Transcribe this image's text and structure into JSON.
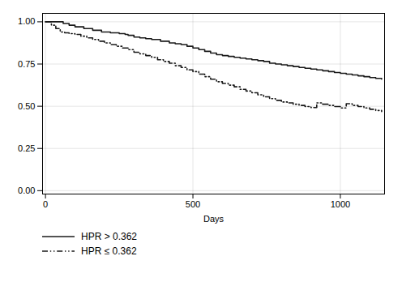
{
  "chart_data": {
    "type": "step",
    "xlabel": "Days",
    "xlim": [
      -10,
      1150
    ],
    "ylim": [
      -0.02,
      1.05
    ],
    "xticks": [
      0,
      500,
      1000
    ],
    "yticks": [
      {
        "value": 0.0,
        "label": "0.00"
      },
      {
        "value": 0.25,
        "label": "0.25"
      },
      {
        "value": 0.5,
        "label": "0.50"
      },
      {
        "value": 0.75,
        "label": "0.75"
      },
      {
        "value": 1.0,
        "label": "1.00"
      }
    ],
    "grid": true,
    "legend": "bottom",
    "series": [
      {
        "name": "HPR > 0.362",
        "color": "#1a1a1a",
        "line_style": "solid",
        "x": [
          0,
          40,
          60,
          80,
          100,
          130,
          160,
          190,
          220,
          250,
          270,
          280,
          300,
          320,
          340,
          360,
          390,
          420,
          440,
          460,
          480,
          500,
          520,
          540,
          560,
          580,
          600,
          620,
          640,
          660,
          680,
          700,
          720,
          740,
          760,
          780,
          800,
          820,
          840,
          860,
          880,
          900,
          920,
          940,
          960,
          980,
          1000,
          1020,
          1040,
          1060,
          1080,
          1100,
          1120,
          1140
        ],
        "values": [
          1.0,
          1.0,
          0.99,
          0.98,
          0.97,
          0.96,
          0.95,
          0.94,
          0.935,
          0.93,
          0.925,
          0.92,
          0.91,
          0.905,
          0.9,
          0.895,
          0.885,
          0.875,
          0.87,
          0.865,
          0.855,
          0.845,
          0.835,
          0.825,
          0.815,
          0.805,
          0.8,
          0.795,
          0.79,
          0.785,
          0.78,
          0.775,
          0.77,
          0.765,
          0.755,
          0.75,
          0.745,
          0.74,
          0.735,
          0.73,
          0.725,
          0.72,
          0.715,
          0.71,
          0.705,
          0.7,
          0.695,
          0.69,
          0.685,
          0.68,
          0.675,
          0.67,
          0.665,
          0.66
        ]
      },
      {
        "name": "HPR ≤ 0.362",
        "color": "#1a1a1a",
        "line_style": "dashdotdot",
        "x": [
          0,
          20,
          35,
          50,
          65,
          80,
          100,
          120,
          140,
          160,
          180,
          200,
          220,
          240,
          260,
          280,
          300,
          320,
          340,
          360,
          380,
          400,
          420,
          440,
          460,
          480,
          500,
          520,
          540,
          560,
          580,
          600,
          620,
          640,
          660,
          680,
          700,
          720,
          740,
          760,
          780,
          800,
          820,
          840,
          860,
          880,
          900,
          920,
          940,
          960,
          980,
          1000,
          1020,
          1040,
          1060,
          1080,
          1100,
          1120,
          1140
        ],
        "values": [
          1.0,
          0.98,
          0.96,
          0.94,
          0.935,
          0.93,
          0.925,
          0.915,
          0.905,
          0.895,
          0.885,
          0.875,
          0.865,
          0.855,
          0.845,
          0.835,
          0.82,
          0.81,
          0.8,
          0.79,
          0.775,
          0.765,
          0.755,
          0.74,
          0.73,
          0.715,
          0.705,
          0.69,
          0.675,
          0.66,
          0.645,
          0.635,
          0.625,
          0.615,
          0.6,
          0.59,
          0.58,
          0.568,
          0.556,
          0.545,
          0.535,
          0.525,
          0.52,
          0.512,
          0.505,
          0.498,
          0.492,
          0.52,
          0.512,
          0.505,
          0.498,
          0.49,
          0.515,
          0.505,
          0.498,
          0.49,
          0.482,
          0.475,
          0.468
        ]
      }
    ]
  }
}
